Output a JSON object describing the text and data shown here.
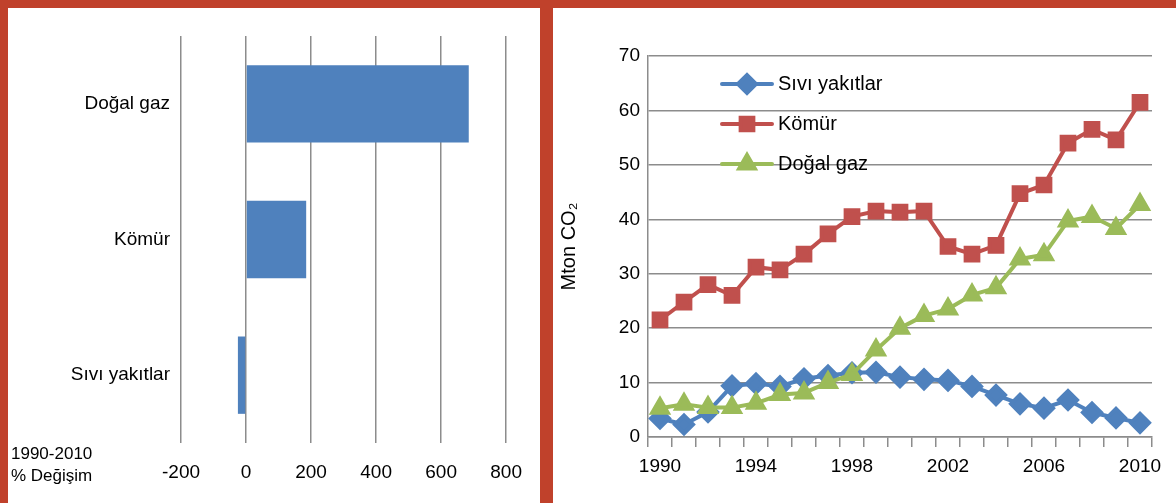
{
  "chart_data": [
    {
      "type": "bar",
      "orientation": "horizontal",
      "categories": [
        "Doğal gaz",
        "Kömür",
        "Sıvı yakıtlar"
      ],
      "values": [
        685,
        185,
        -25
      ],
      "color": "#4f81bd",
      "xlim": [
        -200,
        800
      ],
      "xticks": [
        -200,
        0,
        200,
        400,
        600,
        800
      ],
      "xlabel": "1990-2010 % Değişim",
      "grid": "x"
    },
    {
      "type": "line",
      "categories": [
        "1990",
        null,
        null,
        null,
        "1994",
        null,
        null,
        null,
        "1998",
        null,
        null,
        null,
        "2002",
        null,
        null,
        null,
        "2006",
        null,
        null,
        null,
        "2010"
      ],
      "ylabel": "Mton CO₂",
      "ylim": [
        0,
        70
      ],
      "yticks": [
        0,
        10,
        20,
        30,
        40,
        50,
        60,
        70
      ],
      "grid": "y",
      "legend": "top left",
      "series": [
        {
          "name": "Sıvı yakıtlar",
          "color": "#4f81bd",
          "marker": "diamond",
          "values": [
            3.4,
            2.3,
            4.6,
            9.4,
            9.8,
            9.3,
            10.7,
            11.3,
            11.8,
            11.9,
            11,
            10.6,
            10.4,
            9.3,
            7.7,
            6.1,
            5.3,
            6.8,
            4.5,
            3.5,
            2.6
          ]
        },
        {
          "name": "Kömür",
          "color": "#c0504d",
          "marker": "square",
          "values": [
            21.5,
            24.8,
            28,
            26,
            31.2,
            30.7,
            33.6,
            37.3,
            40.5,
            41.5,
            41.3,
            41.5,
            35,
            33.6,
            35.2,
            44.7,
            46.3,
            54,
            56.5,
            54.6,
            61.5
          ]
        },
        {
          "name": "Doğal gaz",
          "color": "#9bbb59",
          "marker": "triangle",
          "values": [
            5.3,
            6,
            5.4,
            5.4,
            6.2,
            7.8,
            8.1,
            10,
            11.5,
            16,
            20,
            22.3,
            23.5,
            26.1,
            27.4,
            32.7,
            33.5,
            39.7,
            40.5,
            38.3,
            42.7
          ]
        }
      ]
    }
  ]
}
